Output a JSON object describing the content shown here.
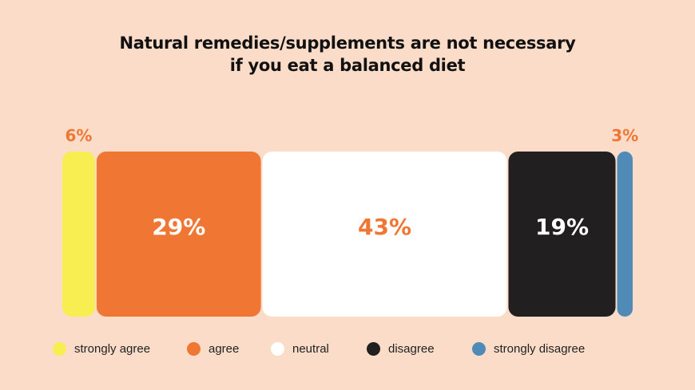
{
  "chart_data": {
    "type": "bar",
    "orientation": "horizontal-stacked",
    "title": "Natural remedies/supplements are not necessary\nif you eat a balanced diet",
    "categories": [
      "strongly agree",
      "agree",
      "neutral",
      "disagree",
      "strongly disagree"
    ],
    "values": [
      6,
      29,
      43,
      19,
      3
    ],
    "data_labels": [
      "6%",
      "29%",
      "43%",
      "19%",
      "3%"
    ],
    "colors": [
      "#f8ee52",
      "#f07733",
      "#ffffff",
      "#221f20",
      "#508bb8"
    ],
    "label_colors": [
      "#f07733",
      "#ffffff",
      "#f07733",
      "#ffffff",
      "#f07733"
    ],
    "legend_position": "bottom",
    "grid": false
  }
}
